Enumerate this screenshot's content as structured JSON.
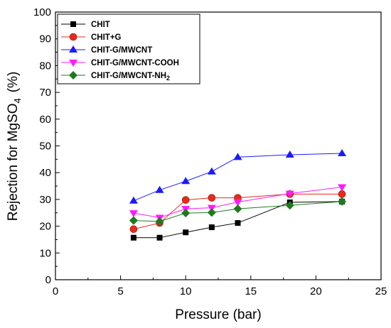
{
  "chart_data": {
    "type": "line",
    "title": "",
    "xlabel": "Pressure (bar)",
    "ylabel_prefix": "Rejection for MgSO",
    "ylabel_sub": "4",
    "ylabel_suffix": "(%)",
    "xlim": [
      0,
      25
    ],
    "ylim": [
      0,
      100
    ],
    "x_ticks": [
      "0",
      "5",
      "10",
      "15",
      "20",
      "25"
    ],
    "y_ticks": [
      "0",
      "10",
      "20",
      "30",
      "40",
      "50",
      "60",
      "70",
      "80",
      "90",
      "100"
    ],
    "grid": false,
    "legend_position": "top-left",
    "series": [
      {
        "name": "CHIT",
        "name_sub": "",
        "color": "#000000",
        "marker": "square",
        "x": [
          6,
          8,
          10,
          12,
          14,
          18,
          22
        ],
        "y": [
          15.7,
          15.7,
          17.7,
          19.6,
          21.2,
          28.9,
          29.2
        ]
      },
      {
        "name": "CHIT+G",
        "name_sub": "",
        "color": "#e8291c",
        "marker": "circle",
        "x": [
          6,
          8,
          10,
          12,
          14,
          18,
          22
        ],
        "y": [
          18.9,
          21.2,
          29.8,
          30.6,
          30.6,
          32.0,
          32.0
        ]
      },
      {
        "name": "CHIT-G/MWCNT",
        "name_sub": "",
        "color": "#1a1aff",
        "marker": "triangle-up",
        "x": [
          6,
          8,
          10,
          12,
          14,
          18,
          22
        ],
        "y": [
          29.5,
          33.5,
          36.8,
          40.4,
          45.8,
          46.7,
          47.2
        ]
      },
      {
        "name": "CHIT-G/MWCNT-COOH",
        "name_sub": "",
        "color": "#ff1aff",
        "marker": "triangle-down",
        "x": [
          6,
          8,
          10,
          12,
          14,
          18,
          22
        ],
        "y": [
          24.9,
          23.2,
          26.5,
          26.9,
          29.0,
          32.2,
          34.6
        ]
      },
      {
        "name": "CHIT-G/MWCNT-NH",
        "name_sub": "2",
        "color": "#1f7a1f",
        "marker": "diamond",
        "x": [
          6,
          8,
          10,
          12,
          14,
          18,
          22
        ],
        "y": [
          22.1,
          21.8,
          24.9,
          25.1,
          26.5,
          27.8,
          29.2
        ]
      }
    ]
  }
}
